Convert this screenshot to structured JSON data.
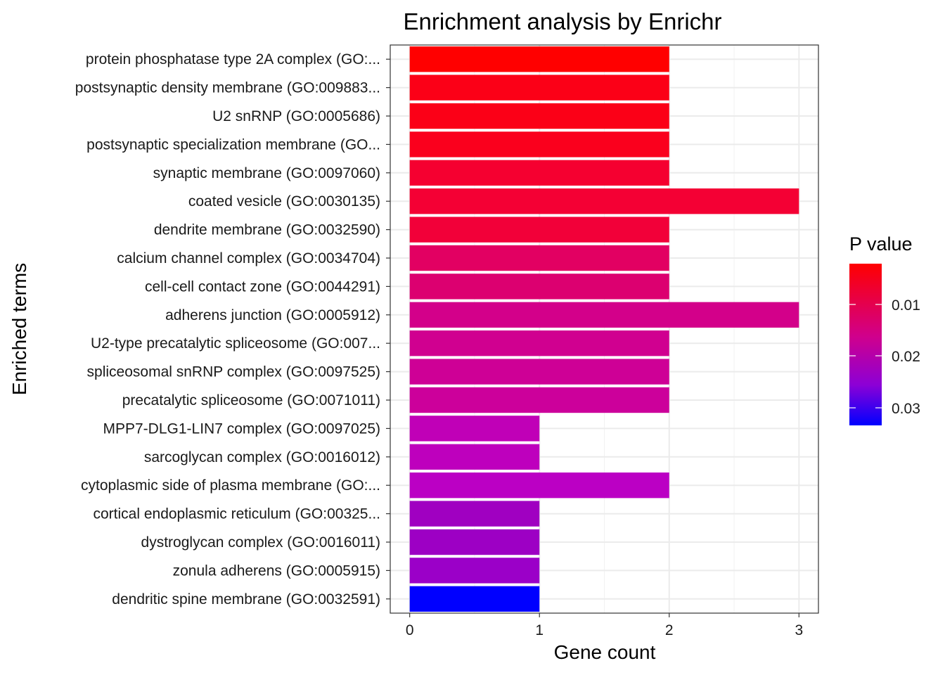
{
  "chart_data": {
    "type": "bar",
    "orientation": "horizontal",
    "title": "Enrichment analysis by Enrichr",
    "xlabel": "Gene count",
    "ylabel": "Enriched terms",
    "xlim": [
      -0.15,
      3.15
    ],
    "xticks": [
      "0",
      "1",
      "2",
      "3"
    ],
    "grid": true,
    "legend_position": "right",
    "categories": [
      "protein phosphatase type 2A complex (GO:...",
      "postsynaptic density membrane (GO:009883...",
      "U2 snRNP (GO:0005686)",
      "postsynaptic specialization membrane (GO...",
      "synaptic membrane (GO:0097060)",
      "coated vesicle (GO:0030135)",
      "dendrite membrane (GO:0032590)",
      "calcium channel complex (GO:0034704)",
      "cell-cell contact zone (GO:0044291)",
      "adherens junction (GO:0005912)",
      "U2-type precatalytic spliceosome (GO:007...",
      "spliceosomal snRNP complex (GO:0097525)",
      "precatalytic spliceosome (GO:0071011)",
      "MPP7-DLG1-LIN7 complex (GO:0097025)",
      "sarcoglycan complex (GO:0016012)",
      "cytoplasmic side of plasma membrane (GO:...",
      "cortical endoplasmic reticulum (GO:00325...",
      "dystroglycan complex (GO:0016011)",
      "zonula adherens (GO:0005915)",
      "dendritic spine membrane (GO:0032591)"
    ],
    "values": [
      2,
      2,
      2,
      2,
      2,
      3,
      2,
      2,
      2,
      3,
      2,
      2,
      2,
      1,
      1,
      2,
      1,
      1,
      1,
      1
    ],
    "colors": [
      "#ff0000",
      "#fb0017",
      "#fb0017",
      "#fa001d",
      "#f50030",
      "#f40034",
      "#f20039",
      "#e20062",
      "#dc0070",
      "#d3008a",
      "#d00090",
      "#ce0096",
      "#cc009b",
      "#c000b7",
      "#be00bd",
      "#bb00c4",
      "#a000c1",
      "#9d00c4",
      "#9b00c8",
      "#0000ff"
    ],
    "color_legend": {
      "title": "P value",
      "labels": [
        "0.01",
        "0.02",
        "0.03"
      ],
      "gradient": [
        "#ff0000",
        "#cc0099",
        "#8800dd",
        "#0000ff"
      ]
    }
  }
}
